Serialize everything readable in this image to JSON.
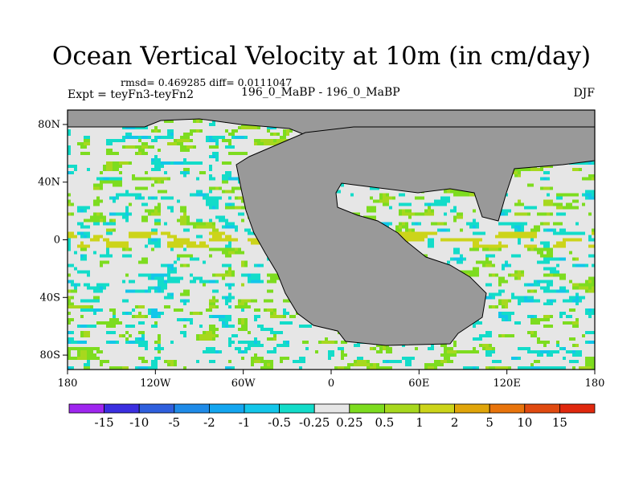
{
  "figure": {
    "title": "Ocean Vertical Velocity at 10m (in cm/day)",
    "stats_text": "rmsd= 0.469285 diff= 0.0111047",
    "experiment_label": "Expt = teyFn3-teyFn2",
    "case_label": "196_0_MaBP - 196_0_MaBP",
    "season_label": "DJF"
  },
  "axes": {
    "x_ticks": [
      "180",
      "120W",
      "60W",
      "0",
      "60E",
      "120E",
      "180"
    ],
    "y_ticks": [
      "80N",
      "40N",
      "0",
      "40S",
      "80S"
    ]
  },
  "colors": {
    "land": "#999999",
    "ocean_background": "#e8e8e8",
    "outline": "#000000"
  },
  "chart_data": {
    "type": "heatmap",
    "projection": "cylindrical equidistant",
    "lon_range": [
      -180,
      180
    ],
    "lat_range": [
      -90,
      90
    ],
    "colorbar": {
      "labels": [
        "-15",
        "-10",
        "-5",
        "-2",
        "-1",
        "-0.5",
        "-0.25",
        "0.25",
        "0.5",
        "1",
        "2",
        "5",
        "10",
        "15"
      ],
      "colors": [
        "#9f26ef",
        "#3b2fe0",
        "#2f5fdd",
        "#1f8be8",
        "#14a6f0",
        "#13c6ea",
        "#13dcc9",
        "#e6e6e6",
        "#7ddc1f",
        "#a7d81e",
        "#ccd41a",
        "#e0a50a",
        "#e8740c",
        "#e04a10",
        "#e0280e"
      ]
    }
  }
}
